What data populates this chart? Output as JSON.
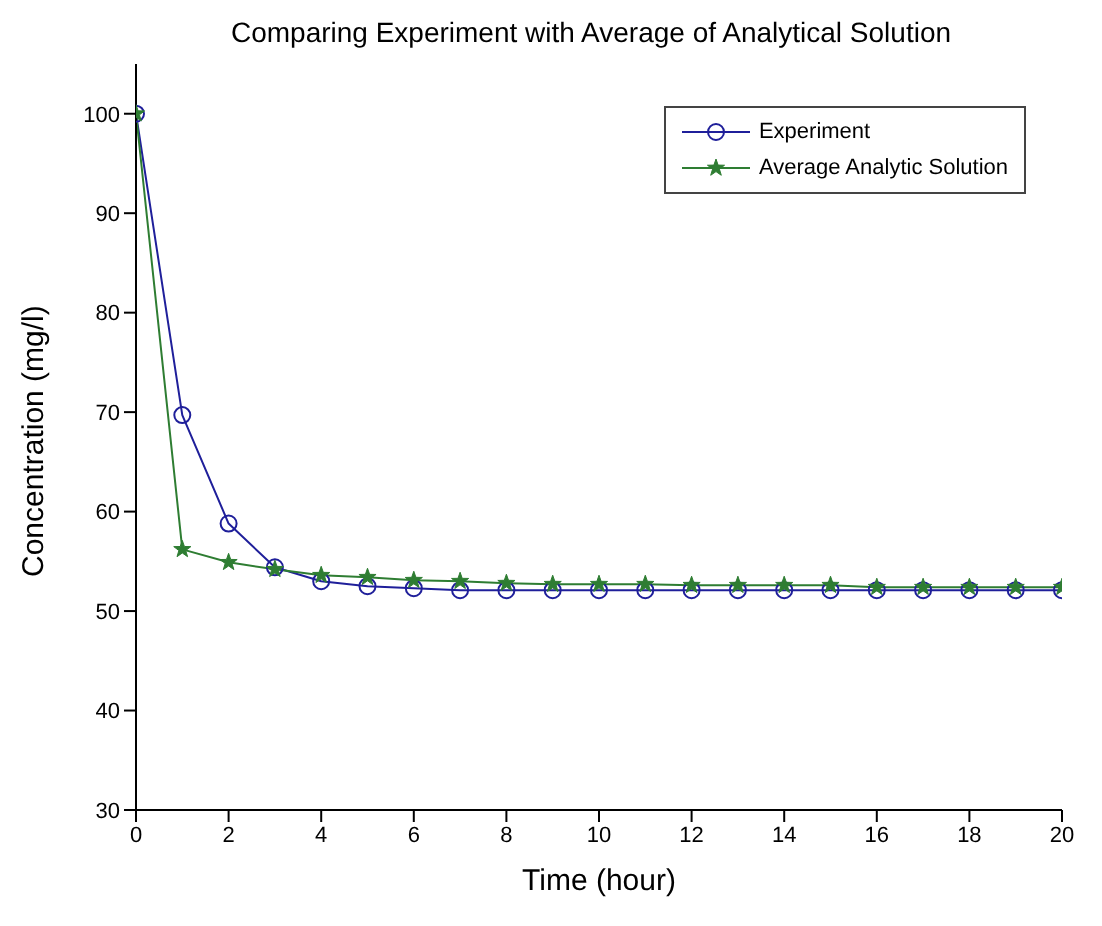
{
  "chart_data": {
    "type": "line",
    "title": "Comparing Experiment with Average of Analytical Solution",
    "xlabel": "Time (hour)",
    "ylabel": "Concentration (mg/l)",
    "x": [
      0,
      1,
      2,
      3,
      4,
      5,
      6,
      7,
      8,
      9,
      10,
      11,
      12,
      13,
      14,
      15,
      16,
      17,
      18,
      19,
      20
    ],
    "series": [
      {
        "name": "Experiment",
        "color": "#1f1f9a",
        "marker": "circle",
        "values": [
          100,
          69.7,
          58.8,
          54.4,
          53.0,
          52.5,
          52.3,
          52.1,
          52.1,
          52.1,
          52.1,
          52.1,
          52.1,
          52.1,
          52.1,
          52.1,
          52.1,
          52.1,
          52.1,
          52.1,
          52.1
        ]
      },
      {
        "name": "Average Analytic Solution",
        "color": "#2e7d32",
        "marker": "star",
        "values": [
          100,
          56.2,
          54.9,
          54.2,
          53.6,
          53.4,
          53.1,
          53.0,
          52.8,
          52.7,
          52.7,
          52.7,
          52.6,
          52.6,
          52.6,
          52.6,
          52.4,
          52.4,
          52.4,
          52.4,
          52.4
        ]
      }
    ],
    "xlim": [
      0,
      20
    ],
    "xticks": [
      0,
      2,
      4,
      6,
      8,
      10,
      12,
      14,
      16,
      18,
      20
    ],
    "ylim": [
      30,
      105
    ],
    "yticks": [
      30,
      40,
      50,
      60,
      70,
      80,
      90,
      100
    ],
    "grid": false,
    "legend": "top right",
    "line_style": "solid"
  }
}
